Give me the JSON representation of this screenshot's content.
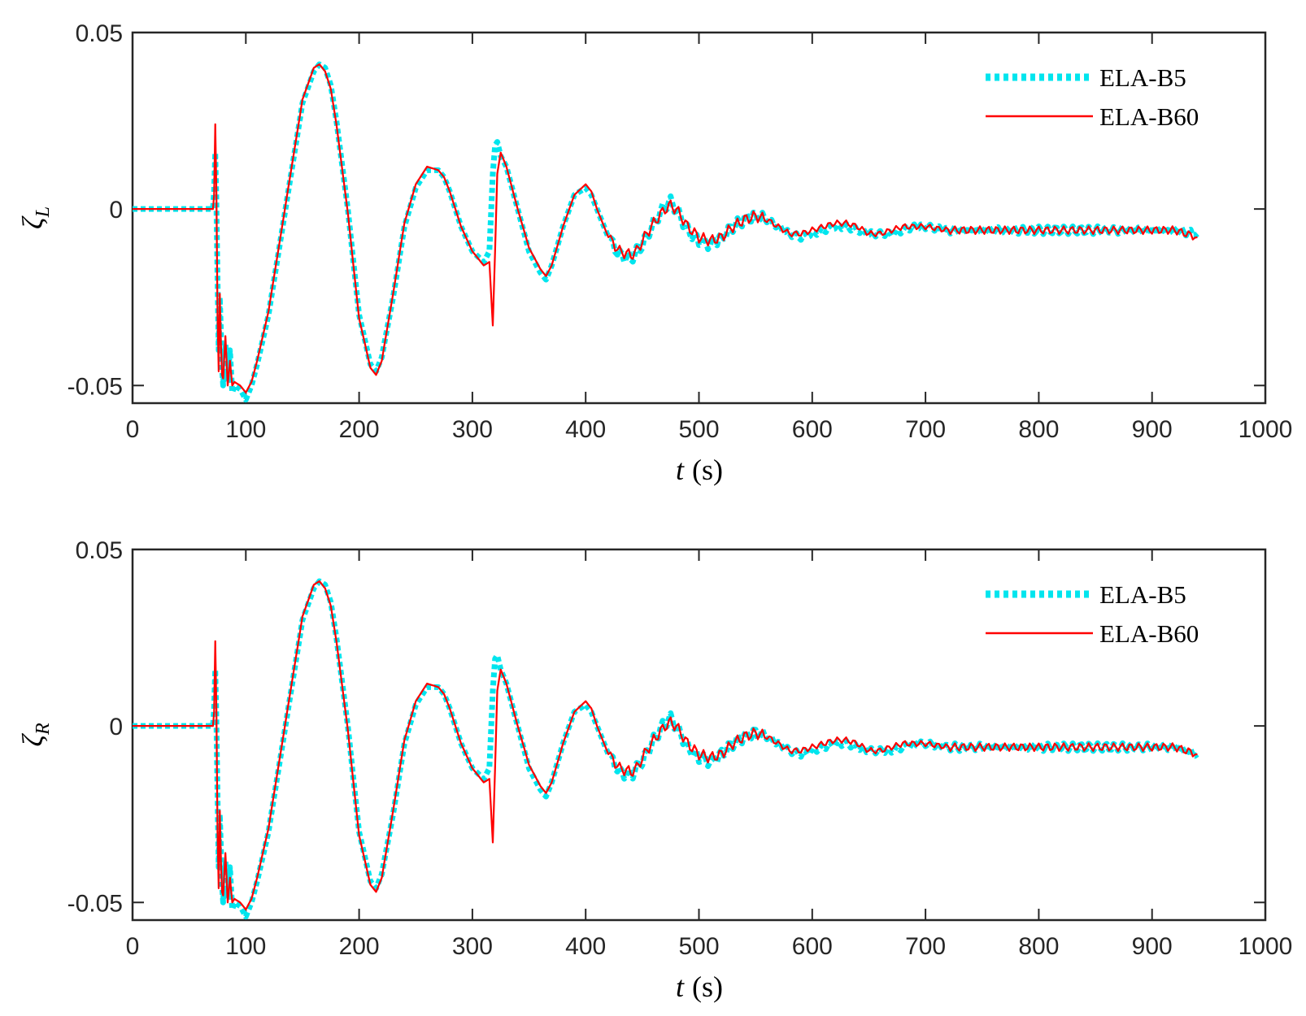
{
  "chart_data": [
    {
      "type": "line",
      "panel": "top",
      "title": "",
      "xlabel": "t (s)",
      "xlabel_var": "t",
      "xlabel_unit": "(s)",
      "ylabel": "ζL",
      "ylabel_symbol": "ζ",
      "ylabel_sub": "L",
      "xlim": [
        0,
        1000
      ],
      "ylim": [
        -0.055,
        0.05
      ],
      "xticks": [
        0,
        100,
        200,
        300,
        400,
        500,
        600,
        700,
        800,
        900,
        1000
      ],
      "xtick_labels": [
        "0",
        "100",
        "200",
        "300",
        "400",
        "500",
        "600",
        "700",
        "800",
        "900",
        "1000"
      ],
      "yticks": [
        -0.05,
        0,
        0.05
      ],
      "ytick_labels": [
        "-0.05",
        "0",
        "0.05"
      ],
      "grid": false,
      "legend_position": "top-right",
      "x": [
        0,
        70,
        71,
        72,
        73,
        74,
        75,
        76,
        77,
        78,
        79,
        80,
        82,
        84,
        86,
        88,
        90,
        95,
        100,
        105,
        110,
        120,
        130,
        140,
        150,
        160,
        165,
        170,
        175,
        180,
        190,
        200,
        210,
        215,
        220,
        230,
        240,
        250,
        260,
        270,
        275,
        280,
        290,
        300,
        310,
        315,
        318,
        320,
        322,
        325,
        330,
        340,
        350,
        360,
        365,
        370,
        380,
        390,
        400,
        405,
        410,
        420,
        430,
        440,
        445,
        450,
        460,
        470,
        475,
        480,
        490,
        500,
        510,
        520,
        530,
        540,
        550,
        560,
        570,
        580,
        590,
        600,
        610,
        620,
        630,
        640,
        650,
        660,
        670,
        680,
        690,
        700,
        720,
        740,
        760,
        780,
        800,
        820,
        840,
        860,
        880,
        900,
        920,
        940
      ],
      "series": [
        {
          "name": "ELA-B5",
          "color": "#00e5ee",
          "style": "dotted-thick",
          "values": [
            0,
            0,
            0,
            0.005,
            0.016,
            0.002,
            -0.02,
            -0.04,
            -0.025,
            -0.035,
            -0.045,
            -0.05,
            -0.038,
            -0.048,
            -0.04,
            -0.052,
            -0.05,
            -0.051,
            -0.054,
            -0.05,
            -0.044,
            -0.03,
            -0.01,
            0.01,
            0.03,
            0.039,
            0.041,
            0.04,
            0.035,
            0.025,
            0.0,
            -0.03,
            -0.044,
            -0.046,
            -0.042,
            -0.025,
            -0.005,
            0.006,
            0.011,
            0.011,
            0.009,
            0.005,
            -0.005,
            -0.012,
            -0.015,
            -0.012,
            0.01,
            0.018,
            0.019,
            0.015,
            0.012,
            0.0,
            -0.012,
            -0.018,
            -0.02,
            -0.016,
            -0.005,
            0.004,
            0.006,
            0.004,
            0.0,
            -0.008,
            -0.013,
            -0.014,
            -0.012,
            -0.01,
            -0.004,
            0.001,
            0.002,
            0.0,
            -0.006,
            -0.009,
            -0.01,
            -0.008,
            -0.005,
            -0.003,
            -0.002,
            -0.003,
            -0.005,
            -0.007,
            -0.008,
            -0.007,
            -0.006,
            -0.005,
            -0.005,
            -0.006,
            -0.007,
            -0.007,
            -0.007,
            -0.006,
            -0.005,
            -0.005,
            -0.006,
            -0.006,
            -0.006,
            -0.006,
            -0.006,
            -0.006,
            -0.006,
            -0.006,
            -0.006,
            -0.006,
            -0.006,
            -0.007
          ]
        },
        {
          "name": "ELA-B60",
          "color": "#ff0000",
          "style": "solid",
          "values": [
            0,
            0,
            0,
            0.004,
            0.024,
            0.005,
            -0.03,
            -0.046,
            -0.024,
            -0.038,
            -0.047,
            -0.048,
            -0.036,
            -0.05,
            -0.043,
            -0.05,
            -0.049,
            -0.05,
            -0.052,
            -0.049,
            -0.043,
            -0.029,
            -0.009,
            0.011,
            0.031,
            0.04,
            0.041,
            0.039,
            0.034,
            0.024,
            -0.001,
            -0.031,
            -0.045,
            -0.047,
            -0.043,
            -0.024,
            -0.004,
            0.007,
            0.012,
            0.011,
            0.009,
            0.005,
            -0.005,
            -0.012,
            -0.016,
            -0.015,
            -0.033,
            -0.012,
            0.01,
            0.016,
            0.012,
            0.0,
            -0.011,
            -0.017,
            -0.019,
            -0.016,
            -0.005,
            0.004,
            0.007,
            0.005,
            0.0,
            -0.008,
            -0.012,
            -0.013,
            -0.012,
            -0.009,
            -0.004,
            0.0,
            0.001,
            0.0,
            -0.005,
            -0.008,
            -0.009,
            -0.008,
            -0.005,
            -0.003,
            -0.002,
            -0.003,
            -0.005,
            -0.007,
            -0.007,
            -0.006,
            -0.005,
            -0.004,
            -0.004,
            -0.005,
            -0.007,
            -0.007,
            -0.006,
            -0.005,
            -0.005,
            -0.005,
            -0.006,
            -0.006,
            -0.006,
            -0.006,
            -0.006,
            -0.006,
            -0.006,
            -0.006,
            -0.006,
            -0.006,
            -0.006,
            -0.008
          ]
        }
      ]
    },
    {
      "type": "line",
      "panel": "bottom",
      "title": "",
      "xlabel": "t (s)",
      "xlabel_var": "t",
      "xlabel_unit": "(s)",
      "ylabel": "ζR",
      "ylabel_symbol": "ζ",
      "ylabel_sub": "R",
      "xlim": [
        0,
        1000
      ],
      "ylim": [
        -0.055,
        0.05
      ],
      "xticks": [
        0,
        100,
        200,
        300,
        400,
        500,
        600,
        700,
        800,
        900,
        1000
      ],
      "xtick_labels": [
        "0",
        "100",
        "200",
        "300",
        "400",
        "500",
        "600",
        "700",
        "800",
        "900",
        "1000"
      ],
      "yticks": [
        -0.05,
        0,
        0.05
      ],
      "ytick_labels": [
        "-0.05",
        "0",
        "0.05"
      ],
      "grid": false,
      "legend_position": "top-right",
      "x": [
        0,
        70,
        71,
        72,
        73,
        74,
        75,
        76,
        77,
        78,
        79,
        80,
        82,
        84,
        86,
        88,
        90,
        95,
        100,
        105,
        110,
        120,
        130,
        140,
        150,
        160,
        165,
        170,
        175,
        180,
        190,
        200,
        210,
        215,
        220,
        230,
        240,
        250,
        260,
        270,
        275,
        280,
        290,
        300,
        310,
        315,
        318,
        320,
        322,
        325,
        330,
        340,
        350,
        360,
        365,
        370,
        380,
        390,
        400,
        405,
        410,
        420,
        430,
        440,
        445,
        450,
        460,
        470,
        475,
        480,
        490,
        500,
        510,
        520,
        530,
        540,
        550,
        560,
        570,
        580,
        590,
        600,
        610,
        620,
        630,
        640,
        650,
        660,
        670,
        680,
        690,
        700,
        720,
        740,
        760,
        780,
        800,
        820,
        840,
        860,
        880,
        900,
        920,
        940
      ],
      "series": [
        {
          "name": "ELA-B5",
          "color": "#00e5ee",
          "style": "dotted-thick",
          "values": [
            0,
            0,
            0,
            0.005,
            0.016,
            0.002,
            -0.02,
            -0.04,
            -0.025,
            -0.035,
            -0.045,
            -0.05,
            -0.038,
            -0.048,
            -0.04,
            -0.052,
            -0.05,
            -0.051,
            -0.054,
            -0.05,
            -0.044,
            -0.03,
            -0.01,
            0.01,
            0.03,
            0.039,
            0.041,
            0.04,
            0.035,
            0.025,
            0.0,
            -0.03,
            -0.044,
            -0.046,
            -0.042,
            -0.025,
            -0.005,
            0.006,
            0.011,
            0.011,
            0.009,
            0.005,
            -0.005,
            -0.012,
            -0.015,
            -0.012,
            0.01,
            0.019,
            0.02,
            0.016,
            0.012,
            0.0,
            -0.012,
            -0.018,
            -0.02,
            -0.016,
            -0.005,
            0.004,
            0.006,
            0.004,
            0.0,
            -0.008,
            -0.013,
            -0.014,
            -0.012,
            -0.01,
            -0.004,
            0.001,
            0.002,
            0.0,
            -0.006,
            -0.009,
            -0.01,
            -0.008,
            -0.005,
            -0.003,
            -0.002,
            -0.003,
            -0.005,
            -0.007,
            -0.008,
            -0.007,
            -0.006,
            -0.005,
            -0.005,
            -0.006,
            -0.007,
            -0.007,
            -0.007,
            -0.006,
            -0.005,
            -0.005,
            -0.006,
            -0.006,
            -0.006,
            -0.006,
            -0.006,
            -0.006,
            -0.006,
            -0.006,
            -0.006,
            -0.006,
            -0.006,
            -0.008
          ]
        },
        {
          "name": "ELA-B60",
          "color": "#ff0000",
          "style": "solid",
          "values": [
            0,
            0,
            0,
            0.004,
            0.024,
            0.005,
            -0.03,
            -0.046,
            -0.024,
            -0.038,
            -0.047,
            -0.048,
            -0.036,
            -0.05,
            -0.043,
            -0.05,
            -0.049,
            -0.05,
            -0.052,
            -0.049,
            -0.043,
            -0.029,
            -0.009,
            0.011,
            0.031,
            0.04,
            0.041,
            0.039,
            0.034,
            0.024,
            -0.001,
            -0.031,
            -0.045,
            -0.047,
            -0.043,
            -0.024,
            -0.004,
            0.007,
            0.012,
            0.011,
            0.009,
            0.005,
            -0.005,
            -0.012,
            -0.016,
            -0.015,
            -0.033,
            -0.012,
            0.01,
            0.016,
            0.012,
            0.0,
            -0.011,
            -0.017,
            -0.019,
            -0.016,
            -0.005,
            0.004,
            0.007,
            0.005,
            0.0,
            -0.008,
            -0.012,
            -0.013,
            -0.012,
            -0.009,
            -0.004,
            0.0,
            0.001,
            0.0,
            -0.005,
            -0.008,
            -0.009,
            -0.008,
            -0.005,
            -0.003,
            -0.002,
            -0.003,
            -0.005,
            -0.007,
            -0.007,
            -0.006,
            -0.005,
            -0.004,
            -0.004,
            -0.005,
            -0.007,
            -0.007,
            -0.006,
            -0.005,
            -0.005,
            -0.005,
            -0.006,
            -0.006,
            -0.006,
            -0.006,
            -0.006,
            -0.006,
            -0.006,
            -0.006,
            -0.006,
            -0.006,
            -0.006,
            -0.008
          ]
        }
      ]
    }
  ]
}
